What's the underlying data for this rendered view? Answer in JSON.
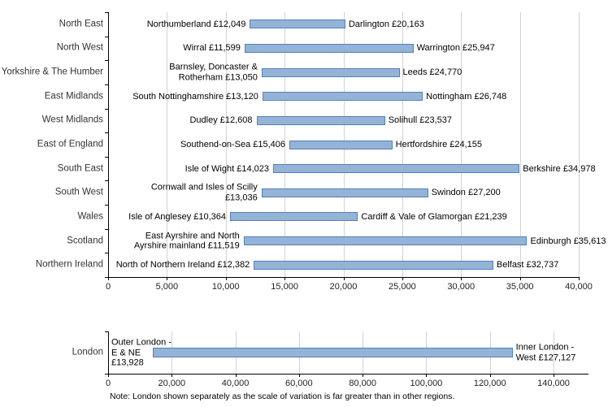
{
  "colors": {
    "bar_fill": "#95b3d7",
    "bar_border": "#4f81bd",
    "gridline": "#d3d3d3",
    "axis": "#000000"
  },
  "note": "Note: London shown separately as the scale of variation is far greater than in other regions.",
  "chart_data": [
    {
      "type": "bar",
      "subtype": "range",
      "orientation": "horizontal",
      "title": "",
      "xlabel": "",
      "ylabel": "",
      "grid": true,
      "legend": false,
      "xlim": [
        0,
        40000
      ],
      "xtick_values": [
        0,
        5000,
        10000,
        15000,
        20000,
        25000,
        30000,
        35000,
        40000
      ],
      "xtick_labels": [
        "0",
        "5,000",
        "10,000",
        "15,000",
        "20,000",
        "25,000",
        "30,000",
        "35,000",
        "40,000"
      ],
      "rows": [
        {
          "category": "North East",
          "min": 12049,
          "min_label": "Northumberland £12,049",
          "max": 20163,
          "max_label": "Darlington £20,163"
        },
        {
          "category": "North West",
          "min": 11599,
          "min_label": "Wirral £11,599",
          "max": 25947,
          "max_label": "Warrington £25,947"
        },
        {
          "category": "Yorkshire & The Humber",
          "min": 13050,
          "min_label": "Barnsley, Doncaster &\nRotherham £13,050",
          "max": 24770,
          "max_label": "Leeds £24,770"
        },
        {
          "category": "East Midlands",
          "min": 13120,
          "min_label": "South Nottinghamshire £13,120",
          "max": 26748,
          "max_label": "Nottingham £26,748"
        },
        {
          "category": "West Midlands",
          "min": 12608,
          "min_label": "Dudley £12,608",
          "max": 23537,
          "max_label": "Solihull £23,537"
        },
        {
          "category": "East of England",
          "min": 15406,
          "min_label": "Southend-on-Sea £15,406",
          "max": 24155,
          "max_label": "Hertfordshire £24,155"
        },
        {
          "category": "South East",
          "min": 14023,
          "min_label": "Isle of Wight £14,023",
          "max": 34978,
          "max_label": "Berkshire £34,978"
        },
        {
          "category": "South West",
          "min": 13036,
          "min_label": "Cornwall and Isles of Scilly\n£13,036",
          "max": 27200,
          "max_label": "Swindon £27,200"
        },
        {
          "category": "Wales",
          "min": 10364,
          "min_label": "Isle of Anglesey £10,364",
          "max": 21239,
          "max_label": "Cardiff & Vale of Glamorgan £21,239"
        },
        {
          "category": "Scotland",
          "min": 11519,
          "min_label": "East Ayrshire and North\nAyrshire mainland £11,519",
          "max": 35613,
          "max_label": "Edinburgh £35,613"
        },
        {
          "category": "Northern Ireland",
          "min": 12382,
          "min_label": "North of Northern Ireland £12,382",
          "max": 32737,
          "max_label": "Belfast £32,737"
        }
      ]
    },
    {
      "type": "bar",
      "subtype": "range",
      "orientation": "horizontal",
      "title": "",
      "xlabel": "",
      "ylabel": "",
      "grid": true,
      "legend": false,
      "xlim": [
        0,
        140000
      ],
      "xtick_values": [
        0,
        20000,
        40000,
        60000,
        80000,
        100000,
        120000,
        140000
      ],
      "xtick_labels": [
        "0",
        "20,000",
        "40,000",
        "60,000",
        "80,000",
        "100,000",
        "120,000",
        "140,000"
      ],
      "rows": [
        {
          "category": "London",
          "min": 13928,
          "min_label": "Outer London -\nE & NE\n£13,928",
          "max": 127127,
          "max_label": "Inner London -\nWest £127,127"
        }
      ]
    }
  ]
}
